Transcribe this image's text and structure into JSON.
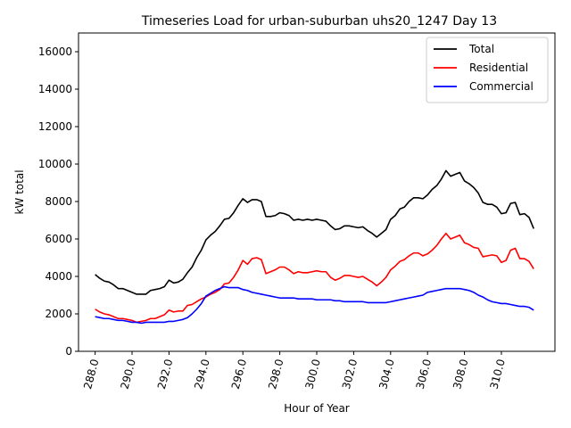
{
  "chart_data": {
    "type": "line",
    "title": "Timeseries Load for urban-suburban uhs20_1247  Day 13",
    "xlabel": "Hour of Year",
    "ylabel": "kW total",
    "xlim": [
      287.1,
      312.9
    ],
    "ylim": [
      0,
      17000
    ],
    "xticks": [
      288,
      290,
      292,
      294,
      296,
      298,
      300,
      302,
      304,
      306,
      308,
      310
    ],
    "xtick_labels": [
      "288.0",
      "290.0",
      "292.0",
      "294.0",
      "296.0",
      "298.0",
      "300.0",
      "302.0",
      "304.0",
      "306.0",
      "308.0",
      "310.0"
    ],
    "yticks": [
      0,
      2000,
      4000,
      6000,
      8000,
      10000,
      12000,
      14000,
      16000
    ],
    "ytick_labels": [
      "0",
      "2000",
      "4000",
      "6000",
      "8000",
      "10000",
      "12000",
      "14000",
      "16000"
    ],
    "legend_position": "top-right",
    "x": [
      288.0,
      288.25,
      288.5,
      288.75,
      289.0,
      289.25,
      289.5,
      289.75,
      290.0,
      290.25,
      290.5,
      290.75,
      291.0,
      291.25,
      291.5,
      291.75,
      292.0,
      292.25,
      292.5,
      292.75,
      293.0,
      293.25,
      293.5,
      293.75,
      294.0,
      294.25,
      294.5,
      294.75,
      295.0,
      295.25,
      295.5,
      295.75,
      296.0,
      296.25,
      296.5,
      296.75,
      297.0,
      297.25,
      297.5,
      297.75,
      298.0,
      298.25,
      298.5,
      298.75,
      299.0,
      299.25,
      299.5,
      299.75,
      300.0,
      300.25,
      300.5,
      300.75,
      301.0,
      301.25,
      301.5,
      301.75,
      302.0,
      302.25,
      302.5,
      302.75,
      303.0,
      303.25,
      303.5,
      303.75,
      304.0,
      304.25,
      304.5,
      304.75,
      305.0,
      305.25,
      305.5,
      305.75,
      306.0,
      306.25,
      306.5,
      306.75,
      307.0,
      307.25,
      307.5,
      307.75,
      308.0,
      308.25,
      308.5,
      308.75,
      309.0,
      309.25,
      309.5,
      309.75,
      310.0,
      310.25,
      310.5,
      310.75,
      311.0,
      311.25,
      311.5,
      311.75
    ],
    "series": [
      {
        "name": "Total",
        "color": "#000000",
        "values": [
          4100,
          3900,
          3750,
          3700,
          3550,
          3350,
          3350,
          3250,
          3150,
          3050,
          3050,
          3050,
          3250,
          3300,
          3350,
          3450,
          3800,
          3650,
          3700,
          3850,
          4200,
          4500,
          5000,
          5400,
          5950,
          6200,
          6400,
          6700,
          7050,
          7100,
          7400,
          7800,
          8150,
          7950,
          8100,
          8100,
          8000,
          7200,
          7200,
          7250,
          7400,
          7350,
          7250,
          7000,
          7050,
          7000,
          7050,
          7000,
          7050,
          7000,
          6950,
          6700,
          6500,
          6550,
          6700,
          6700,
          6650,
          6600,
          6650,
          6450,
          6300,
          6100,
          6300,
          6500,
          7050,
          7250,
          7600,
          7700,
          8000,
          8200,
          8200,
          8150,
          8350,
          8650,
          8850,
          9200,
          9650,
          9350,
          9450,
          9550,
          9100,
          8950,
          8750,
          8450,
          7950,
          7850,
          7850,
          7700,
          7350,
          7400,
          7900,
          7950,
          7300,
          7350,
          7150,
          6550
        ]
      },
      {
        "name": "Residential",
        "color": "#ff0000",
        "values": [
          2250,
          2100,
          2000,
          1950,
          1850,
          1750,
          1750,
          1700,
          1650,
          1550,
          1600,
          1650,
          1750,
          1750,
          1850,
          1950,
          2200,
          2100,
          2150,
          2150,
          2450,
          2500,
          2650,
          2800,
          2900,
          3050,
          3150,
          3300,
          3600,
          3650,
          3950,
          4350,
          4850,
          4650,
          4950,
          5000,
          4900,
          4150,
          4250,
          4350,
          4500,
          4500,
          4350,
          4150,
          4250,
          4200,
          4200,
          4250,
          4300,
          4250,
          4250,
          3950,
          3800,
          3900,
          4050,
          4050,
          4000,
          3950,
          4000,
          3850,
          3700,
          3500,
          3700,
          3950,
          4350,
          4550,
          4800,
          4900,
          5100,
          5250,
          5250,
          5100,
          5200,
          5400,
          5650,
          6000,
          6300,
          6000,
          6100,
          6200,
          5800,
          5700,
          5550,
          5500,
          5050,
          5100,
          5150,
          5100,
          4750,
          4850,
          5400,
          5500,
          4950,
          4950,
          4800,
          4400
        ]
      },
      {
        "name": "Commercial",
        "color": "#0000ff",
        "values": [
          1850,
          1800,
          1750,
          1750,
          1700,
          1650,
          1650,
          1600,
          1550,
          1550,
          1500,
          1550,
          1550,
          1550,
          1550,
          1550,
          1600,
          1600,
          1650,
          1700,
          1800,
          2000,
          2250,
          2550,
          2950,
          3100,
          3250,
          3350,
          3450,
          3400,
          3400,
          3400,
          3300,
          3250,
          3150,
          3100,
          3050,
          3000,
          2950,
          2900,
          2850,
          2850,
          2850,
          2850,
          2800,
          2800,
          2800,
          2800,
          2750,
          2750,
          2750,
          2750,
          2700,
          2700,
          2650,
          2650,
          2650,
          2650,
          2650,
          2600,
          2600,
          2600,
          2600,
          2600,
          2650,
          2700,
          2750,
          2800,
          2850,
          2900,
          2950,
          3000,
          3150,
          3200,
          3250,
          3300,
          3350,
          3350,
          3350,
          3350,
          3300,
          3250,
          3150,
          3000,
          2900,
          2750,
          2650,
          2600,
          2550,
          2550,
          2500,
          2450,
          2400,
          2400,
          2350,
          2200
        ]
      }
    ]
  }
}
